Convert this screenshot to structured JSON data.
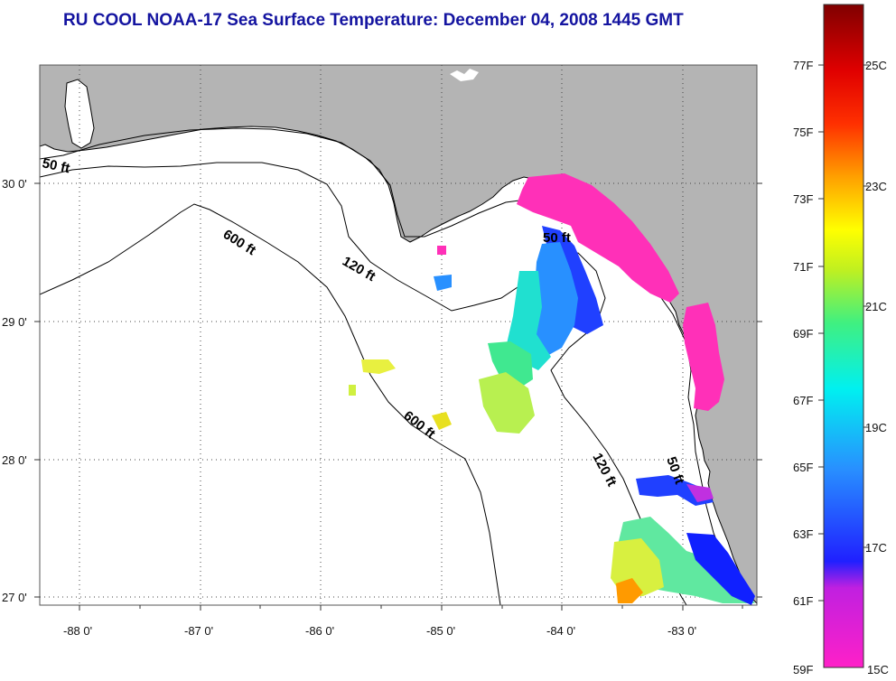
{
  "title": "RU COOL  NOAA-17  Sea Surface Temperature:  December 04, 2008 1445 GMT",
  "colors": {
    "title": "#1414a0",
    "land": "#b4b4b4",
    "sea": "#ffffff",
    "coast": "#000000"
  },
  "axes": {
    "lon_labels": [
      "-88 0'",
      "-87 0'",
      "-86 0'",
      "-85 0'",
      "-84 0'",
      "-83 0'"
    ],
    "lat_labels": [
      "30 0'",
      "29 0'",
      "28 0'",
      "27 0'"
    ]
  },
  "contour_labels": [
    "50 ft",
    "600 ft",
    "120 ft",
    "50 ft",
    "600 ft",
    "120 ft",
    "50 ft"
  ],
  "colorbar": {
    "fahrenheit_labels": [
      "77F",
      "75F",
      "73F",
      "71F",
      "69F",
      "67F",
      "65F",
      "63F",
      "61F",
      "59F"
    ],
    "celsius_labels": [
      "25C",
      "23C",
      "21C",
      "19C",
      "17C",
      "15C"
    ]
  }
}
